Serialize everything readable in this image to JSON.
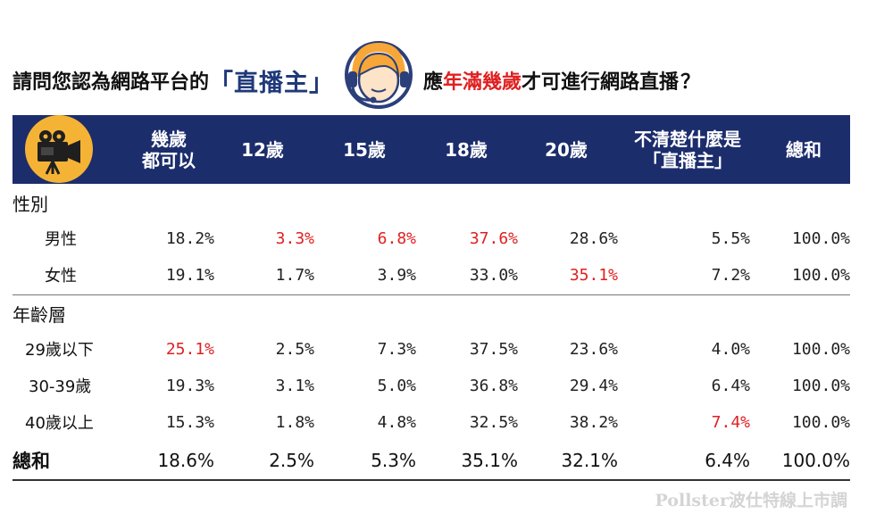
{
  "title": {
    "part1": "請問您認為網路平台的",
    "highlight": "「直播主」",
    "part2": "應",
    "red": "年滿幾歲",
    "part3": "才可進行網路直播",
    "question_mark": "？"
  },
  "header": {
    "col1_line1": "幾歲",
    "col1_line2": "都可以",
    "col2": "12歲",
    "col3": "15歲",
    "col4": "18歲",
    "col5": "20歲",
    "col6_line1": "不清楚什麼是",
    "col6_line2": "「直播主」",
    "col7": "總和"
  },
  "groups": {
    "gender": "性別",
    "age": "年齡層"
  },
  "rows": {
    "male": {
      "label": "男性",
      "values": [
        "18.2%",
        "3.3%",
        "6.8%",
        "37.6%",
        "28.6%",
        "5.5%",
        "100.0%"
      ]
    },
    "female": {
      "label": "女性",
      "values": [
        "19.1%",
        "1.7%",
        "3.9%",
        "33.0%",
        "35.1%",
        "7.2%",
        "100.0%"
      ]
    },
    "age_u29": {
      "label": "29歲以下",
      "values": [
        "25.1%",
        "2.5%",
        "7.3%",
        "37.5%",
        "23.6%",
        "4.0%",
        "100.0%"
      ]
    },
    "age_30_39": {
      "label": "30-39歲",
      "values": [
        "19.3%",
        "3.1%",
        "5.0%",
        "36.8%",
        "29.4%",
        "6.4%",
        "100.0%"
      ]
    },
    "age_40p": {
      "label": "40歲以上",
      "values": [
        "15.3%",
        "1.8%",
        "4.8%",
        "32.5%",
        "38.2%",
        "7.4%",
        "100.0%"
      ]
    },
    "total": {
      "label": "總和",
      "values": [
        "18.6%",
        "2.5%",
        "5.3%",
        "35.1%",
        "32.1%",
        "6.4%",
        "100.0%"
      ]
    }
  },
  "colors": {
    "header_bg": "#1c2d6c",
    "highlight_red": "#e02020",
    "title_blue": "#1f3a7a"
  },
  "footer": "Pollster波仕特線上市調"
}
